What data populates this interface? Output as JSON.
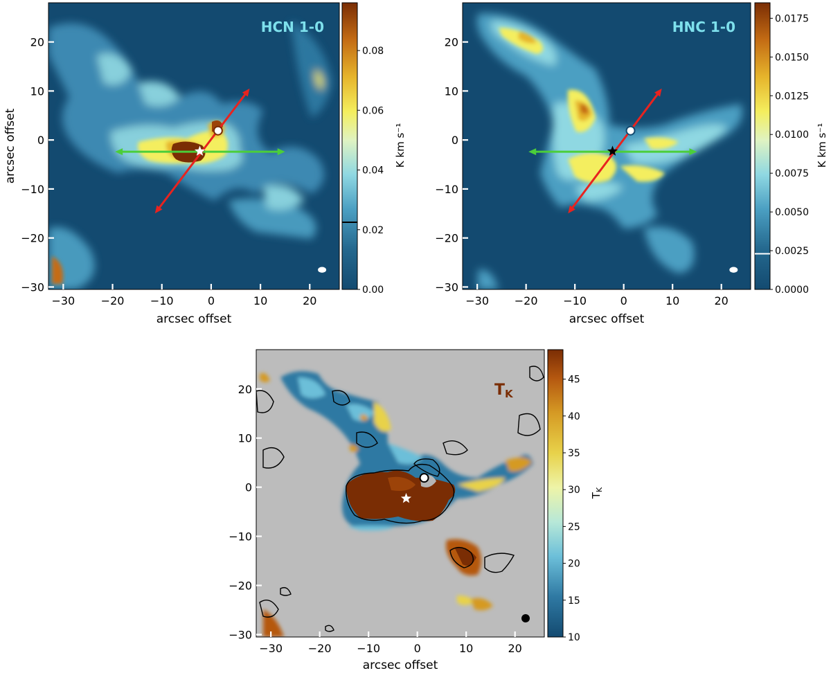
{
  "chart_data": [
    {
      "type": "heatmap",
      "title": "HCN 1-0",
      "xlabel": "arcsec offset",
      "ylabel": "arcsec offset",
      "xlim": [
        -33,
        26
      ],
      "ylim": [
        -30.5,
        28
      ],
      "xticks": [
        -30,
        -20,
        -10,
        0,
        10,
        20
      ],
      "xtick_labels": [
        "−30",
        "−20",
        "−10",
        "0",
        "10",
        "20"
      ],
      "yticks": [
        -30,
        -20,
        -10,
        0,
        10,
        20
      ],
      "ytick_labels": [
        "−30",
        "−20",
        "−10",
        "0",
        "10",
        "20"
      ],
      "colorbar": {
        "label": "K km s⁻¹",
        "range": [
          0.0,
          0.096
        ],
        "ticks": [
          0.0,
          0.02,
          0.04,
          0.06,
          0.08
        ],
        "tick_labels": [
          "0.00",
          "0.02",
          "0.04",
          "0.06",
          "0.08"
        ],
        "threshold_line": 0.0225
      },
      "star": {
        "x": -2.3,
        "y": -2.3,
        "color": "#ffffff"
      },
      "circle_marker": {
        "x": 1.4,
        "y": 1.9
      },
      "red_arrow": {
        "from": [
          -11.4,
          -15.0
        ],
        "to": [
          7.8,
          10.5
        ]
      },
      "green_arrow": {
        "from": [
          -19.5,
          -2.4
        ],
        "to": [
          15.0,
          -2.4
        ]
      },
      "beam": {
        "x": 22.5,
        "y": -26.5
      }
    },
    {
      "type": "heatmap",
      "title": "HNC 1-0",
      "xlabel": "arcsec offset",
      "ylabel": "",
      "xlim": [
        -33,
        26
      ],
      "ylim": [
        -30.5,
        28
      ],
      "xticks": [
        -30,
        -20,
        -10,
        0,
        10,
        20
      ],
      "xtick_labels": [
        "−30",
        "−20",
        "−10",
        "0",
        "10",
        "20"
      ],
      "yticks": [
        -30,
        -20,
        -10,
        0,
        10,
        20
      ],
      "ytick_labels": [
        "−30",
        "−20",
        "−10",
        "0",
        "10",
        "20"
      ],
      "colorbar": {
        "label": "K km s⁻¹",
        "range": [
          0.0,
          0.0185
        ],
        "ticks": [
          0.0,
          0.0025,
          0.005,
          0.0075,
          0.01,
          0.0125,
          0.015,
          0.0175
        ],
        "tick_labels": [
          "0.0000",
          "0.0025",
          "0.0050",
          "0.0075",
          "0.0100",
          "0.0125",
          "0.0150",
          "0.0175"
        ],
        "threshold_line": 0.0023
      },
      "star": {
        "x": -2.3,
        "y": -2.3,
        "color": "#000000"
      },
      "circle_marker": {
        "x": 1.4,
        "y": 1.9
      },
      "red_arrow": {
        "from": [
          -11.4,
          -15.0
        ],
        "to": [
          7.8,
          10.5
        ]
      },
      "green_arrow": {
        "from": [
          -19.5,
          -2.4
        ],
        "to": [
          15.0,
          -2.4
        ]
      },
      "beam": {
        "x": 22.5,
        "y": -26.5
      }
    },
    {
      "type": "heatmap",
      "title": "TK",
      "xlabel": "arcsec offset",
      "ylabel": "",
      "xlim": [
        -33,
        26
      ],
      "ylim": [
        -30.5,
        28
      ],
      "xticks": [
        -30,
        -20,
        -10,
        0,
        10,
        20
      ],
      "xtick_labels": [
        "−30",
        "−20",
        "−10",
        "0",
        "10",
        "20"
      ],
      "yticks": [
        -30,
        -20,
        -10,
        0,
        10,
        20
      ],
      "ytick_labels": [
        "−30",
        "−20",
        "−10",
        "0",
        "10",
        "20"
      ],
      "colorbar": {
        "label": "TK",
        "range": [
          10,
          49
        ],
        "ticks": [
          10,
          15,
          20,
          25,
          30,
          35,
          40,
          45
        ],
        "tick_labels": [
          "10",
          "15",
          "20",
          "25",
          "30",
          "35",
          "40",
          "45"
        ]
      },
      "star": {
        "x": -2.3,
        "y": -2.3,
        "color": "#ffffff"
      },
      "circle_marker": {
        "x": 1.4,
        "y": 1.9
      },
      "beam": {
        "x": 22.5,
        "y": -26.5
      }
    }
  ],
  "colors": {
    "map_background": "#134a70",
    "masked_background": "#bcbcbc",
    "title_text": "#7ee0ec",
    "tk_title_text": "#7a2d04",
    "red_arrow": "#e8231f",
    "green_arrow": "#4bce3a"
  }
}
